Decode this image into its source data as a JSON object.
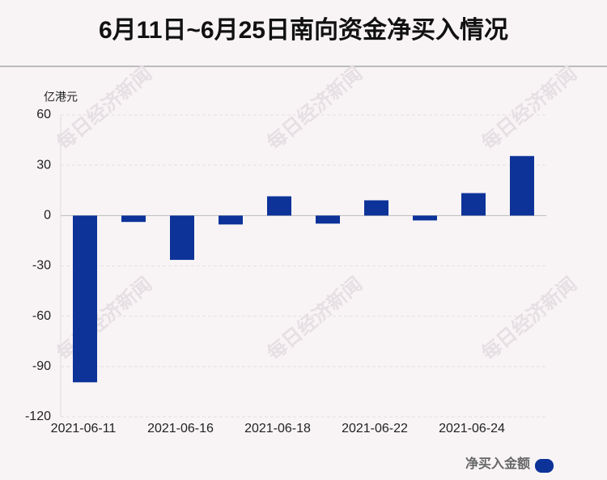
{
  "chart_data": {
    "type": "bar",
    "title": "6月11日~6月25日南向资金净买入情况",
    "y_label": "亿港元",
    "categories": [
      "2021-06-11",
      null,
      "2021-06-16",
      null,
      "2021-06-18",
      null,
      "2021-06-22",
      null,
      "2021-06-24",
      null
    ],
    "series": [
      {
        "name": "净买入金额",
        "color": "#0d3399",
        "values": [
          -99.4,
          -3.8,
          -26.4,
          -5.3,
          11.5,
          -4.8,
          9.1,
          -2.9,
          13.4,
          35.5
        ]
      }
    ],
    "ylim": [
      -120,
      60
    ],
    "yticks": [
      -120,
      -90,
      -60,
      -30,
      0,
      30,
      60
    ],
    "grid": true,
    "watermark": "每日经济新闻"
  }
}
